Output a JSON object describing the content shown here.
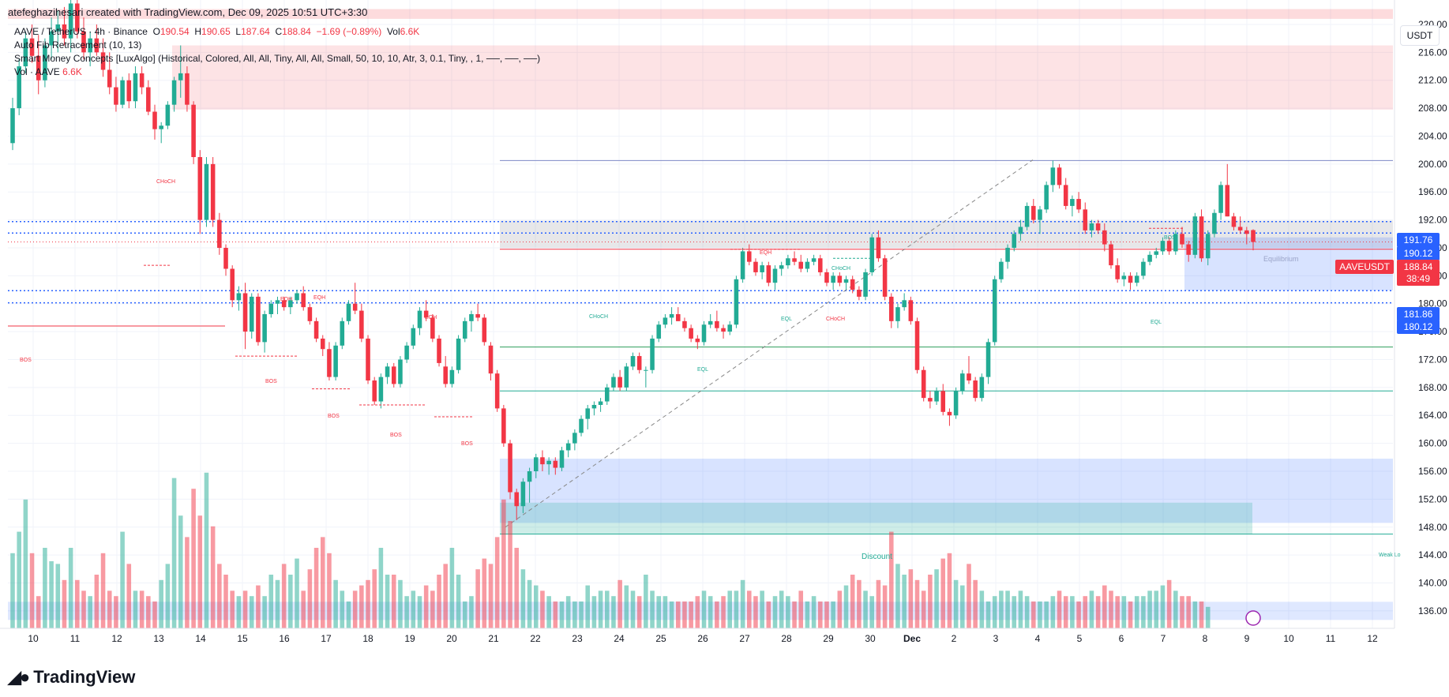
{
  "header": {
    "credit": "atefeghazihesari created with TradingView.com, Dec 09, 2025 10:51 UTC+3:30"
  },
  "legend": {
    "symbol": "AAVE / TetherUS · 4h · Binance",
    "open_label": "O",
    "open": "190.54",
    "high_label": "H",
    "high": "190.65",
    "low_label": "L",
    "low": "187.64",
    "close_label": "C",
    "close": "188.84",
    "change": "−1.69 (−0.89%)",
    "vol_label": "Vol",
    "vol": "6.6K",
    "ind1": "Auto Fib Retracement (10, 13)",
    "ind2": "Smart Money Concepts [LuxAlgo] (Historical, Colored, All, All, Tiny, All, All, Small, 50, 10, 10, Atr, 3, 0.1, Tiny, , 1, ──, ──, ──)",
    "ind3_label": "Vol · AAVE",
    "ind3_value": "6.6K"
  },
  "currency_button": "USDT",
  "brand": "TradingView",
  "colors": {
    "up": "#22ab94",
    "down": "#f23645",
    "accent": "#2962ff",
    "grid": "#f0f3fa"
  },
  "price_tags": {
    "symbol_tag": "AAVEUSDT",
    "last_price": "188.84",
    "countdown": "38:49",
    "level_191_76": "191.76",
    "level_190_12": "190.12",
    "level_181_86": "181.86",
    "level_180_12": "180.12"
  },
  "annotations": {
    "bos_left": "BOS",
    "choch_1": "CHoCH",
    "eqh_1": "EQH",
    "eqh_2": "EQH",
    "eqh_3": "EQH",
    "eqh_4": "EQH",
    "bos_1": "BOS",
    "bos_2": "BOS",
    "bos_3": "BOS",
    "bos_4": "BOS",
    "choch_2": "CHoCH",
    "choch_3": "CHoCH",
    "choch_4": "CHoCH",
    "eql_1": "EQL",
    "eql_2": "EQL",
    "eql_3": "EQL",
    "bos_5": "BOS",
    "discount": "Discount",
    "equilibrium": "Equilibrium",
    "weak_low": "Weak Lo"
  },
  "chart_data": {
    "type": "candlestick",
    "title": "AAVE / TetherUS · 4h · Binance",
    "ylim": [
      133.5,
      223.5
    ],
    "y_ticks": [
      "220.00",
      "216.00",
      "212.00",
      "208.00",
      "204.00",
      "200.00",
      "196.00",
      "192.00",
      "188.00",
      "184.00",
      "180.00",
      "176.00",
      "172.00",
      "168.00",
      "164.00",
      "160.00",
      "156.00",
      "152.00",
      "148.00",
      "144.00",
      "140.00",
      "136.00"
    ],
    "x_labels": [
      "10",
      "11",
      "12",
      "13",
      "14",
      "15",
      "16",
      "17",
      "18",
      "19",
      "20",
      "21",
      "22",
      "23",
      "24",
      "25",
      "26",
      "27",
      "28",
      "29",
      "30",
      "Dec",
      "2",
      "3",
      "4",
      "5",
      "6",
      "7",
      "8",
      "9",
      "10",
      "11",
      "12"
    ],
    "series_ohlc": [
      [
        203.0,
        209.5,
        202.0,
        208.0
      ],
      [
        208.0,
        215.0,
        207.0,
        214.0
      ],
      [
        214.0,
        219.0,
        213.0,
        218.0
      ],
      [
        218.0,
        220.0,
        214.5,
        215.5
      ],
      [
        215.5,
        218.5,
        210.0,
        212.0
      ],
      [
        212.0,
        218.0,
        211.0,
        217.0
      ],
      [
        217.0,
        221.0,
        215.0,
        219.0
      ],
      [
        219.0,
        222.0,
        216.0,
        220.0
      ],
      [
        220.0,
        222.5,
        217.0,
        218.0
      ],
      [
        218.0,
        224.0,
        216.0,
        223.0
      ],
      [
        223.0,
        224.0,
        218.0,
        219.0
      ],
      [
        219.0,
        221.0,
        215.0,
        216.0
      ],
      [
        216.0,
        219.0,
        214.0,
        218.0
      ],
      [
        218.0,
        220.0,
        215.5,
        216.0
      ],
      [
        216.0,
        218.0,
        212.5,
        213.5
      ],
      [
        213.5,
        216.0,
        210.0,
        211.0
      ],
      [
        211.0,
        212.5,
        207.5,
        208.5
      ],
      [
        208.5,
        212.5,
        208.0,
        212.0
      ],
      [
        212.0,
        213.0,
        208.0,
        209.0
      ],
      [
        209.0,
        214.0,
        208.0,
        213.0
      ],
      [
        213.0,
        214.0,
        210.0,
        211.0
      ],
      [
        211.0,
        212.0,
        207.0,
        207.5
      ],
      [
        207.5,
        208.5,
        203.5,
        205.0
      ],
      [
        205.0,
        206.0,
        203.0,
        205.5
      ],
      [
        205.5,
        209.0,
        205.0,
        208.5
      ],
      [
        208.5,
        212.5,
        207.5,
        212.0
      ],
      [
        212.0,
        217.0,
        209.5,
        213.0
      ],
      [
        213.0,
        214.0,
        207.5,
        208.5
      ],
      [
        208.5,
        209.0,
        200.0,
        201.0
      ],
      [
        201.0,
        202.0,
        190.0,
        192.0
      ],
      [
        192.0,
        201.0,
        191.0,
        200.0
      ],
      [
        200.0,
        201.0,
        191.0,
        192.0
      ],
      [
        192.0,
        193.0,
        187.0,
        188.0
      ],
      [
        188.0,
        188.5,
        184.0,
        185.0
      ],
      [
        185.0,
        185.5,
        179.5,
        180.5
      ],
      [
        180.5,
        182.5,
        179.0,
        181.5
      ],
      [
        181.5,
        183.0,
        173.5,
        176.0
      ],
      [
        176.0,
        181.5,
        175.0,
        181.0
      ],
      [
        181.0,
        181.5,
        174.0,
        174.5
      ],
      [
        174.5,
        179.0,
        173.0,
        178.5
      ],
      [
        178.5,
        180.5,
        178.0,
        180.0
      ],
      [
        180.0,
        181.0,
        178.5,
        180.5
      ],
      [
        180.5,
        181.0,
        179.0,
        179.5
      ],
      [
        179.5,
        181.0,
        178.5,
        180.5
      ],
      [
        180.5,
        182.0,
        180.0,
        181.5
      ],
      [
        181.5,
        182.5,
        179.0,
        179.5
      ],
      [
        179.5,
        180.0,
        177.0,
        177.5
      ],
      [
        177.5,
        178.0,
        174.5,
        175.0
      ],
      [
        175.0,
        175.5,
        172.5,
        173.5
      ],
      [
        173.5,
        174.5,
        169.0,
        169.5
      ],
      [
        169.5,
        174.5,
        169.0,
        174.0
      ],
      [
        174.0,
        178.0,
        173.5,
        177.5
      ],
      [
        177.5,
        180.5,
        177.0,
        180.0
      ],
      [
        180.0,
        183.0,
        178.5,
        179.0
      ],
      [
        179.0,
        180.0,
        174.5,
        175.0
      ],
      [
        175.0,
        175.5,
        168.5,
        169.0
      ],
      [
        169.0,
        169.5,
        165.5,
        166.0
      ],
      [
        166.0,
        170.0,
        165.0,
        169.5
      ],
      [
        169.5,
        171.5,
        168.5,
        171.0
      ],
      [
        171.0,
        171.5,
        168.0,
        168.5
      ],
      [
        168.5,
        172.5,
        168.0,
        172.0
      ],
      [
        172.0,
        174.5,
        171.5,
        174.0
      ],
      [
        174.0,
        177.0,
        173.5,
        176.5
      ],
      [
        176.5,
        179.5,
        175.5,
        179.0
      ],
      [
        179.0,
        180.5,
        177.5,
        178.0
      ],
      [
        178.0,
        178.5,
        174.5,
        175.0
      ],
      [
        175.0,
        175.5,
        171.0,
        171.5
      ],
      [
        171.0,
        172.5,
        168.0,
        168.5
      ],
      [
        168.5,
        171.0,
        168.0,
        170.5
      ],
      [
        170.5,
        175.5,
        170.0,
        175.0
      ],
      [
        175.0,
        178.0,
        174.5,
        177.5
      ],
      [
        177.5,
        179.0,
        176.0,
        178.5
      ],
      [
        178.5,
        180.0,
        177.5,
        178.0
      ],
      [
        178.0,
        178.5,
        174.0,
        174.5
      ],
      [
        174.0,
        174.5,
        169.0,
        170.0
      ],
      [
        170.0,
        170.5,
        164.5,
        165.0
      ],
      [
        165.0,
        165.5,
        159.5,
        160.0
      ],
      [
        160.0,
        160.5,
        152.0,
        153.0
      ],
      [
        153.0,
        153.5,
        149.0,
        151.0
      ],
      [
        151.0,
        155.0,
        150.0,
        154.5
      ],
      [
        154.5,
        156.5,
        151.5,
        156.0
      ],
      [
        156.0,
        158.5,
        155.0,
        158.0
      ],
      [
        158.0,
        159.0,
        156.0,
        157.0
      ],
      [
        157.0,
        158.0,
        155.5,
        157.5
      ],
      [
        157.5,
        158.0,
        155.5,
        156.5
      ],
      [
        156.5,
        159.5,
        156.0,
        159.0
      ],
      [
        159.0,
        160.5,
        158.0,
        160.0
      ],
      [
        160.0,
        162.0,
        159.0,
        161.5
      ],
      [
        161.5,
        164.0,
        161.0,
        163.5
      ],
      [
        163.5,
        165.5,
        162.0,
        165.0
      ],
      [
        165.0,
        166.0,
        164.0,
        165.5
      ],
      [
        165.5,
        166.5,
        164.5,
        166.0
      ],
      [
        166.0,
        168.5,
        165.5,
        168.0
      ],
      [
        168.0,
        170.0,
        167.5,
        169.5
      ],
      [
        169.5,
        170.5,
        167.5,
        168.0
      ],
      [
        168.0,
        171.5,
        167.5,
        171.0
      ],
      [
        171.0,
        173.0,
        170.5,
        172.5
      ],
      [
        172.5,
        173.0,
        170.0,
        170.5
      ],
      [
        170.5,
        171.0,
        168.0,
        170.5
      ],
      [
        170.5,
        175.5,
        170.0,
        175.0
      ],
      [
        175.0,
        177.5,
        174.5,
        177.0
      ],
      [
        177.0,
        178.5,
        176.5,
        178.0
      ],
      [
        178.0,
        179.5,
        177.0,
        178.5
      ],
      [
        178.5,
        179.5,
        177.5,
        177.5
      ],
      [
        177.5,
        178.0,
        176.0,
        176.5
      ],
      [
        176.5,
        177.0,
        174.5,
        175.0
      ],
      [
        175.0,
        175.5,
        173.5,
        174.5
      ],
      [
        174.5,
        177.5,
        174.0,
        177.0
      ],
      [
        177.0,
        178.5,
        176.5,
        177.5
      ],
      [
        177.5,
        179.0,
        176.0,
        176.5
      ],
      [
        176.5,
        177.0,
        175.0,
        176.0
      ],
      [
        176.0,
        177.5,
        175.5,
        177.0
      ],
      [
        177.0,
        184.0,
        176.5,
        183.5
      ],
      [
        183.5,
        188.0,
        183.0,
        187.5
      ],
      [
        187.5,
        188.5,
        185.5,
        186.0
      ],
      [
        186.0,
        186.5,
        184.0,
        184.5
      ],
      [
        184.5,
        186.0,
        183.5,
        185.5
      ],
      [
        185.5,
        186.0,
        182.5,
        183.0
      ],
      [
        183.0,
        185.5,
        182.0,
        185.0
      ],
      [
        185.0,
        186.0,
        184.0,
        185.5
      ],
      [
        185.5,
        187.0,
        185.0,
        186.5
      ],
      [
        186.5,
        187.5,
        185.5,
        186.0
      ],
      [
        186.0,
        187.0,
        184.5,
        185.0
      ],
      [
        185.0,
        186.5,
        184.5,
        186.0
      ],
      [
        186.0,
        187.0,
        185.5,
        186.5
      ],
      [
        186.5,
        187.0,
        184.0,
        184.5
      ],
      [
        184.5,
        185.0,
        182.5,
        183.0
      ],
      [
        183.0,
        184.5,
        182.0,
        184.0
      ],
      [
        184.0,
        184.5,
        182.5,
        183.0
      ],
      [
        183.0,
        184.0,
        182.0,
        183.5
      ],
      [
        183.5,
        184.0,
        181.5,
        182.0
      ],
      [
        182.0,
        182.5,
        180.5,
        181.0
      ],
      [
        181.0,
        185.0,
        180.5,
        184.5
      ],
      [
        184.5,
        190.0,
        184.0,
        189.5
      ],
      [
        189.5,
        190.5,
        186.0,
        186.5
      ],
      [
        186.5,
        187.0,
        180.5,
        181.0
      ],
      [
        181.0,
        181.5,
        176.5,
        177.5
      ],
      [
        177.5,
        180.0,
        176.5,
        179.5
      ],
      [
        179.5,
        181.5,
        179.0,
        180.5
      ],
      [
        180.5,
        181.0,
        177.0,
        177.5
      ],
      [
        177.5,
        178.0,
        170.0,
        170.5
      ],
      [
        170.5,
        171.0,
        166.0,
        166.5
      ],
      [
        166.5,
        167.5,
        165.0,
        166.0
      ],
      [
        166.0,
        168.0,
        165.5,
        167.5
      ],
      [
        167.5,
        168.5,
        164.0,
        164.5
      ],
      [
        164.5,
        165.0,
        162.5,
        164.0
      ],
      [
        164.0,
        168.0,
        163.5,
        167.5
      ],
      [
        167.5,
        170.5,
        167.0,
        170.0
      ],
      [
        170.0,
        172.5,
        168.5,
        169.0
      ],
      [
        169.0,
        169.5,
        166.0,
        166.5
      ],
      [
        166.5,
        170.0,
        166.0,
        169.5
      ],
      [
        169.5,
        175.0,
        168.5,
        174.5
      ],
      [
        174.5,
        184.0,
        174.0,
        183.5
      ],
      [
        183.5,
        186.5,
        183.0,
        186.0
      ],
      [
        186.0,
        188.5,
        185.0,
        188.0
      ],
      [
        188.0,
        190.5,
        187.5,
        190.0
      ],
      [
        190.0,
        192.0,
        189.0,
        191.0
      ],
      [
        191.0,
        194.5,
        190.5,
        194.0
      ],
      [
        194.0,
        195.0,
        191.5,
        192.0
      ],
      [
        192.0,
        194.0,
        190.0,
        193.5
      ],
      [
        193.5,
        197.5,
        193.0,
        197.0
      ],
      [
        197.0,
        200.5,
        196.0,
        199.5
      ],
      [
        199.5,
        200.0,
        196.5,
        197.0
      ],
      [
        197.0,
        198.0,
        193.5,
        194.0
      ],
      [
        194.0,
        195.5,
        192.5,
        195.0
      ],
      [
        195.0,
        196.0,
        193.0,
        193.5
      ],
      [
        193.5,
        194.5,
        190.0,
        190.5
      ],
      [
        190.5,
        192.0,
        189.5,
        191.5
      ],
      [
        191.5,
        192.0,
        190.0,
        190.5
      ],
      [
        190.5,
        191.5,
        187.5,
        188.5
      ],
      [
        188.5,
        189.0,
        185.0,
        185.5
      ],
      [
        185.5,
        186.5,
        183.0,
        183.5
      ],
      [
        183.5,
        184.5,
        182.5,
        184.0
      ],
      [
        184.0,
        184.5,
        182.0,
        183.0
      ],
      [
        183.0,
        184.5,
        182.5,
        184.0
      ],
      [
        184.0,
        186.5,
        183.5,
        186.0
      ],
      [
        186.0,
        187.5,
        185.5,
        187.0
      ],
      [
        187.0,
        188.0,
        186.5,
        187.5
      ],
      [
        187.5,
        189.5,
        187.0,
        189.0
      ],
      [
        189.0,
        189.5,
        187.0,
        187.5
      ],
      [
        187.5,
        190.5,
        187.0,
        190.0
      ],
      [
        190.0,
        191.0,
        188.0,
        188.5
      ],
      [
        188.5,
        189.0,
        186.0,
        187.0
      ],
      [
        187.0,
        193.0,
        186.5,
        192.5
      ],
      [
        192.5,
        193.5,
        186.0,
        186.5
      ],
      [
        186.5,
        190.5,
        185.5,
        190.0
      ],
      [
        190.0,
        193.5,
        189.5,
        193.0
      ],
      [
        193.0,
        197.5,
        192.0,
        197.0
      ],
      [
        197.0,
        200.0,
        192.5,
        192.5
      ],
      [
        192.5,
        193.0,
        190.5,
        191.0
      ],
      [
        191.0,
        192.5,
        190.0,
        190.5
      ],
      [
        190.5,
        191.0,
        188.5,
        190.0
      ],
      [
        190.54,
        190.65,
        187.64,
        188.84
      ]
    ],
    "volume": [
      0.28,
      0.36,
      0.48,
      0.28,
      0.12,
      0.3,
      0.25,
      0.24,
      0.18,
      0.3,
      0.18,
      0.14,
      0.12,
      0.2,
      0.28,
      0.14,
      0.12,
      0.36,
      0.24,
      0.14,
      0.14,
      0.12,
      0.1,
      0.18,
      0.24,
      0.56,
      0.42,
      0.34,
      0.52,
      0.42,
      0.58,
      0.38,
      0.24,
      0.2,
      0.14,
      0.12,
      0.14,
      0.12,
      0.16,
      0.12,
      0.2,
      0.18,
      0.24,
      0.2,
      0.26,
      0.14,
      0.22,
      0.3,
      0.34,
      0.28,
      0.18,
      0.14,
      0.1,
      0.14,
      0.16,
      0.18,
      0.22,
      0.3,
      0.2,
      0.2,
      0.18,
      0.12,
      0.14,
      0.12,
      0.16,
      0.14,
      0.2,
      0.24,
      0.3,
      0.2,
      0.1,
      0.12,
      0.22,
      0.26,
      0.24,
      0.34,
      0.48,
      0.4,
      0.3,
      0.22,
      0.18,
      0.16,
      0.14,
      0.12,
      0.1,
      0.1,
      0.12,
      0.1,
      0.1,
      0.16,
      0.12,
      0.14,
      0.14,
      0.12,
      0.18,
      0.16,
      0.14,
      0.12,
      0.2,
      0.14,
      0.12,
      0.12,
      0.1,
      0.1,
      0.1,
      0.1,
      0.12,
      0.14,
      0.12,
      0.1,
      0.12,
      0.14,
      0.14,
      0.18,
      0.14,
      0.12,
      0.14,
      0.1,
      0.12,
      0.14,
      0.12,
      0.1,
      0.14,
      0.1,
      0.12,
      0.1,
      0.1,
      0.1,
      0.14,
      0.16,
      0.2,
      0.18,
      0.14,
      0.12,
      0.18,
      0.16,
      0.36,
      0.24,
      0.2,
      0.22,
      0.18,
      0.14,
      0.2,
      0.22,
      0.26,
      0.28,
      0.18,
      0.16,
      0.24,
      0.18,
      0.14,
      0.1,
      0.12,
      0.14,
      0.14,
      0.12,
      0.14,
      0.12,
      0.1,
      0.1,
      0.1,
      0.12,
      0.14,
      0.12,
      0.12,
      0.1,
      0.12,
      0.14,
      0.12,
      0.16,
      0.14,
      0.12,
      0.12,
      0.1,
      0.12,
      0.12,
      0.14,
      0.14,
      0.16,
      0.18,
      0.14,
      0.12,
      0.12,
      0.1,
      0.1,
      0.08
    ]
  }
}
